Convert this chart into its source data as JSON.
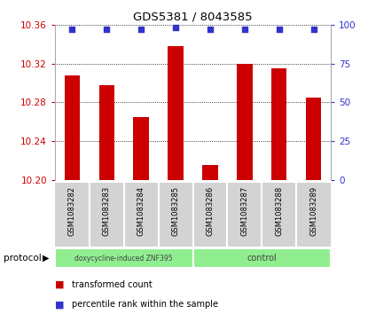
{
  "title": "GDS5381 / 8043585",
  "samples": [
    "GSM1083282",
    "GSM1083283",
    "GSM1083284",
    "GSM1083285",
    "GSM1083286",
    "GSM1083287",
    "GSM1083288",
    "GSM1083289"
  ],
  "bar_values": [
    10.308,
    10.298,
    10.265,
    10.338,
    10.215,
    10.32,
    10.315,
    10.285
  ],
  "percentile_values": [
    97,
    97,
    97,
    98,
    97,
    97,
    97,
    97
  ],
  "ylim_left": [
    10.2,
    10.36
  ],
  "ylim_right": [
    0,
    100
  ],
  "yticks_left": [
    10.2,
    10.24,
    10.28,
    10.32,
    10.36
  ],
  "yticks_right": [
    0,
    25,
    50,
    75,
    100
  ],
  "bar_color": "#cc0000",
  "dot_color": "#3333cc",
  "protocol_groups": [
    {
      "label": "doxycycline-induced ZNF395",
      "start": 0,
      "end": 4
    },
    {
      "label": "control",
      "start": 4,
      "end": 8
    }
  ],
  "protocol_label": "protocol",
  "legend_items": [
    {
      "label": "transformed count",
      "color": "#cc0000"
    },
    {
      "label": "percentile rank within the sample",
      "color": "#3333cc"
    }
  ],
  "tick_label_color_left": "#cc0000",
  "tick_label_color_right": "#3333cc",
  "bg_plot": "#ffffff",
  "bg_sample_labels": "#d3d3d3",
  "bg_protocol": "#90ee90",
  "bar_width": 0.45
}
